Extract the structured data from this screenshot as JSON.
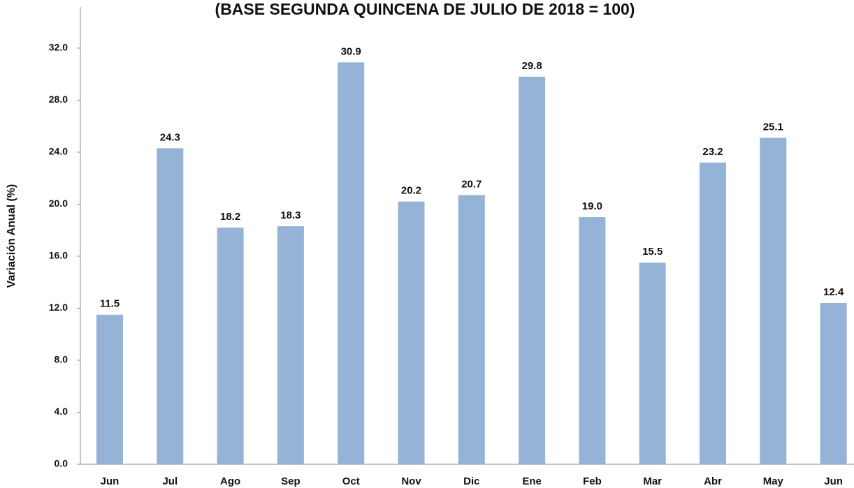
{
  "chart_data": {
    "type": "bar",
    "title": "(BASE SEGUNDA QUINCENA DE JULIO DE 2018 = 100)",
    "y_label": "Variación Anual (%)",
    "categories": [
      "Jun",
      "Jul",
      "Ago",
      "Sep",
      "Oct",
      "Nov",
      "Dic",
      "Ene",
      "Feb",
      "Mar",
      "Abr",
      "May",
      "Jun"
    ],
    "values": [
      11.5,
      24.3,
      18.2,
      18.3,
      30.9,
      20.2,
      20.7,
      29.8,
      19.0,
      15.5,
      23.2,
      25.1,
      12.4
    ],
    "value_labels": [
      "11.5",
      "24.3",
      "18.2",
      "18.3",
      "30.9",
      "20.2",
      "20.7",
      "29.8",
      "19.0",
      "15.5",
      "23.2",
      "25.1",
      "12.4"
    ],
    "color": "#95b3d7",
    "ylim": [
      0,
      35
    ],
    "yticks": [
      {
        "value": 0,
        "label": "0.0"
      },
      {
        "value": 4,
        "label": "4.0"
      },
      {
        "value": 8,
        "label": "8.0"
      },
      {
        "value": 12,
        "label": "12.0"
      },
      {
        "value": 16,
        "label": "16.0"
      },
      {
        "value": 20,
        "label": "20.0"
      },
      {
        "value": 24,
        "label": "24.0"
      },
      {
        "value": 28,
        "label": "28.0"
      },
      {
        "value": 32,
        "label": "32.0"
      }
    ],
    "grid": false
  }
}
